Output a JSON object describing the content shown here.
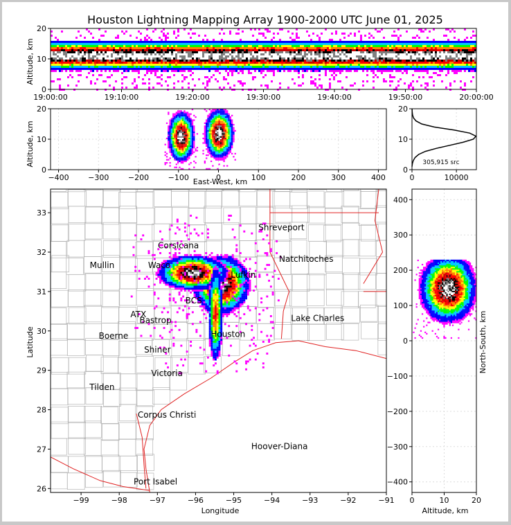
{
  "title": "Houston Lightning Mapping Array 1900-2000 UTC June 01, 2025",
  "colors": {
    "density_scale": [
      "#ff00ff",
      "#0000ff",
      "#00c8ff",
      "#00ff00",
      "#ffff00",
      "#ff8000",
      "#ff0000",
      "#c80000",
      "#000000",
      "#808080",
      "#ffffff"
    ],
    "state_lines": "#e02020",
    "county_lines": "#b4b4b4",
    "coast": "#e02020"
  },
  "chart_data": [
    {
      "type": "heatmap",
      "name": "time-height",
      "ylabel": "Altitude, km",
      "ylim": [
        0,
        20
      ],
      "yticks": [
        "0",
        "10",
        "20"
      ],
      "xticks": [
        "19:00:00",
        "19:10:00",
        "19:20:00",
        "19:30:00",
        "19:40:00",
        "19:50:00",
        "20:00:00"
      ],
      "core_altitude_km": 11
    },
    {
      "type": "heatmap",
      "name": "east-west-height",
      "xlabel": "East-West, km",
      "ylabel": "Altitude, km",
      "xlim": [
        -420,
        420
      ],
      "ylim": [
        0,
        20
      ],
      "xticks": [
        "−400",
        "−300",
        "−200",
        "−100",
        "0",
        "100",
        "200",
        "300",
        "400"
      ],
      "yticks": [
        "0",
        "10",
        "20"
      ],
      "cells": [
        {
          "x": -95,
          "alt": 11
        },
        {
          "x": 0,
          "alt": 12
        }
      ]
    },
    {
      "type": "line",
      "name": "altitude-histogram",
      "xlim": [
        0,
        14500
      ],
      "ylim": [
        0,
        20
      ],
      "xticks": [
        "0",
        "10000"
      ],
      "yticks": [
        "0",
        "10",
        "20"
      ],
      "source_count": "305,915 src",
      "x": [
        0,
        100,
        300,
        700,
        1500,
        3000,
        5500,
        8500,
        11500,
        13800,
        14400,
        13000,
        9500,
        5000,
        2200,
        900,
        350,
        120,
        40,
        10
      ],
      "y": [
        1,
        2,
        3,
        4,
        5,
        6,
        7,
        8,
        9,
        10,
        11,
        12,
        13,
        14,
        15,
        16,
        17,
        18,
        19,
        20
      ]
    },
    {
      "type": "heatmap",
      "name": "plan-view",
      "xlabel": "Longitude",
      "ylabel": "Latitude",
      "xlim": [
        -99.8,
        -91
      ],
      "ylim": [
        25.9,
        33.6
      ],
      "xticks": [
        "−99",
        "−98",
        "−97",
        "−96",
        "−95",
        "−94",
        "−93",
        "−92",
        "−91"
      ],
      "yticks": [
        "26",
        "27",
        "28",
        "29",
        "30",
        "31",
        "32",
        "33"
      ],
      "cells": [
        {
          "lon": -95.35,
          "lat": 31.15
        },
        {
          "lon": -96.1,
          "lat": 31.45
        },
        {
          "lon": -95.5,
          "lat": 30.3
        }
      ]
    },
    {
      "type": "heatmap",
      "name": "north-south-height",
      "xlabel": "Altitude, km",
      "ylabel": "North-South, km",
      "xlim": [
        0,
        20
      ],
      "ylim": [
        -430,
        430
      ],
      "xticks": [
        "0",
        "10",
        "20"
      ],
      "yticks": [
        "−400",
        "−300",
        "−200",
        "−100",
        "0",
        "100",
        "200",
        "300",
        "400"
      ],
      "cells": [
        {
          "alt": 11,
          "ns": 150
        }
      ]
    }
  ],
  "map_labels": [
    {
      "text": "Shreveport",
      "lon": -93.75,
      "lat": 32.55,
      "color": "#000000"
    },
    {
      "text": "Corsicana",
      "lon": -96.45,
      "lat": 32.1,
      "color": "#000000"
    },
    {
      "text": "Natchitoches",
      "lon": -93.1,
      "lat": 31.75,
      "color": "#000000"
    },
    {
      "text": "Mullin",
      "lon": -98.45,
      "lat": 31.6,
      "color": "#ff8040"
    },
    {
      "text": "Waco",
      "lon": -96.95,
      "lat": 31.6,
      "color": "#000000"
    },
    {
      "text": "Lufkin",
      "lon": -94.75,
      "lat": 31.35,
      "color": "#000000"
    },
    {
      "text": "BCS",
      "lon": -96.05,
      "lat": 30.7,
      "color": "#000000"
    },
    {
      "text": "ATX",
      "lon": -97.5,
      "lat": 30.35,
      "color": "#ff8040"
    },
    {
      "text": "Bastrop",
      "lon": -97.05,
      "lat": 30.2,
      "color": "#000000"
    },
    {
      "text": "Houston",
      "lon": -95.15,
      "lat": 29.85,
      "color": "#ffa000"
    },
    {
      "text": "Lake Charles",
      "lon": -92.8,
      "lat": 30.25,
      "color": "#000000"
    },
    {
      "text": "Boerne",
      "lon": -98.15,
      "lat": 29.8,
      "color": "#000000"
    },
    {
      "text": "Shiner",
      "lon": -97.0,
      "lat": 29.45,
      "color": "#000000"
    },
    {
      "text": "Victoria",
      "lon": -96.75,
      "lat": 28.85,
      "color": "#000000"
    },
    {
      "text": "Tilden",
      "lon": -98.45,
      "lat": 28.5,
      "color": "#000000"
    },
    {
      "text": "Corpus Christi",
      "lon": -96.75,
      "lat": 27.8,
      "color": "#000000"
    },
    {
      "text": "Hoover-Diana",
      "lon": -93.8,
      "lat": 27.0,
      "color": "#0000ff"
    },
    {
      "text": "Port Isabel",
      "lon": -97.05,
      "lat": 26.1,
      "color": "#000000"
    }
  ]
}
